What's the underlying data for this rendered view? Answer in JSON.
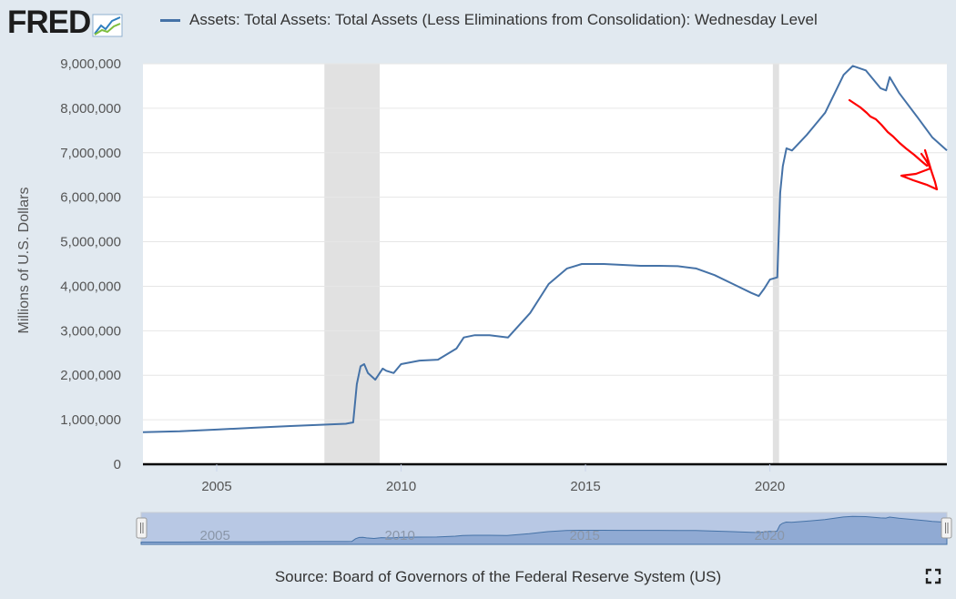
{
  "header": {
    "logo_text": "FRED",
    "logo_icon": "chart-line-icon",
    "legend_label": "Assets: Total Assets: Total Assets (Less Eliminations from Consolidation): Wednesday Level"
  },
  "footer": {
    "source": "Source: Board of Governors of the Federal Reserve System (US)",
    "fullscreen_icon": "fullscreen-icon"
  },
  "colors": {
    "series": "#4572a7",
    "recession": "#e1e1e1",
    "annotation": "#ff0000",
    "background": "#e1e9f0"
  },
  "chart_data": {
    "type": "line",
    "title": "",
    "xlabel": "",
    "ylabel": "Millions of U.S. Dollars",
    "xlim": [
      2003.0,
      2024.8
    ],
    "ylim": [
      0,
      9000000
    ],
    "yticks": [
      0,
      1000000,
      2000000,
      3000000,
      4000000,
      5000000,
      6000000,
      7000000,
      8000000,
      9000000
    ],
    "ytick_labels": [
      "0",
      "1,000,000",
      "2,000,000",
      "3,000,000",
      "4,000,000",
      "5,000,000",
      "6,000,000",
      "7,000,000",
      "8,000,000",
      "9,000,000"
    ],
    "xticks": [
      2005,
      2010,
      2015,
      2020
    ],
    "xtick_labels": [
      "2005",
      "2010",
      "2015",
      "2020"
    ],
    "legend": "top-left",
    "grid": true,
    "recessions": [
      [
        2007.92,
        2009.42
      ],
      [
        2020.08,
        2020.25
      ]
    ],
    "series": [
      {
        "name": "Assets: Total Assets: Total Assets (Less Eliminations from Consolidation): Wednesday Level",
        "points": [
          [
            2003.0,
            720000
          ],
          [
            2004.0,
            740000
          ],
          [
            2005.0,
            780000
          ],
          [
            2006.0,
            820000
          ],
          [
            2007.0,
            860000
          ],
          [
            2007.9,
            890000
          ],
          [
            2008.2,
            900000
          ],
          [
            2008.5,
            910000
          ],
          [
            2008.7,
            940000
          ],
          [
            2008.8,
            1800000
          ],
          [
            2008.9,
            2200000
          ],
          [
            2009.0,
            2250000
          ],
          [
            2009.1,
            2050000
          ],
          [
            2009.3,
            1900000
          ],
          [
            2009.5,
            2150000
          ],
          [
            2009.6,
            2100000
          ],
          [
            2009.8,
            2050000
          ],
          [
            2010.0,
            2250000
          ],
          [
            2010.5,
            2330000
          ],
          [
            2011.0,
            2350000
          ],
          [
            2011.5,
            2600000
          ],
          [
            2011.7,
            2850000
          ],
          [
            2012.0,
            2900000
          ],
          [
            2012.4,
            2900000
          ],
          [
            2012.9,
            2850000
          ],
          [
            2013.5,
            3400000
          ],
          [
            2014.0,
            4050000
          ],
          [
            2014.5,
            4400000
          ],
          [
            2014.9,
            4500000
          ],
          [
            2015.5,
            4500000
          ],
          [
            2016.0,
            4480000
          ],
          [
            2016.5,
            4460000
          ],
          [
            2017.0,
            4460000
          ],
          [
            2017.5,
            4450000
          ],
          [
            2018.0,
            4400000
          ],
          [
            2018.5,
            4250000
          ],
          [
            2019.0,
            4050000
          ],
          [
            2019.5,
            3850000
          ],
          [
            2019.7,
            3780000
          ],
          [
            2019.85,
            3950000
          ],
          [
            2020.0,
            4150000
          ],
          [
            2020.2,
            4200000
          ],
          [
            2020.28,
            6100000
          ],
          [
            2020.35,
            6700000
          ],
          [
            2020.45,
            7100000
          ],
          [
            2020.6,
            7050000
          ],
          [
            2021.0,
            7400000
          ],
          [
            2021.5,
            7900000
          ],
          [
            2022.0,
            8750000
          ],
          [
            2022.25,
            8950000
          ],
          [
            2022.6,
            8850000
          ],
          [
            2023.0,
            8450000
          ],
          [
            2023.15,
            8400000
          ],
          [
            2023.25,
            8700000
          ],
          [
            2023.5,
            8350000
          ],
          [
            2024.0,
            7800000
          ],
          [
            2024.4,
            7350000
          ],
          [
            2024.8,
            7050000
          ]
        ]
      }
    ],
    "navigator": {
      "xtick_labels": [
        "2005",
        "2010",
        "2015",
        "2020"
      ]
    }
  }
}
